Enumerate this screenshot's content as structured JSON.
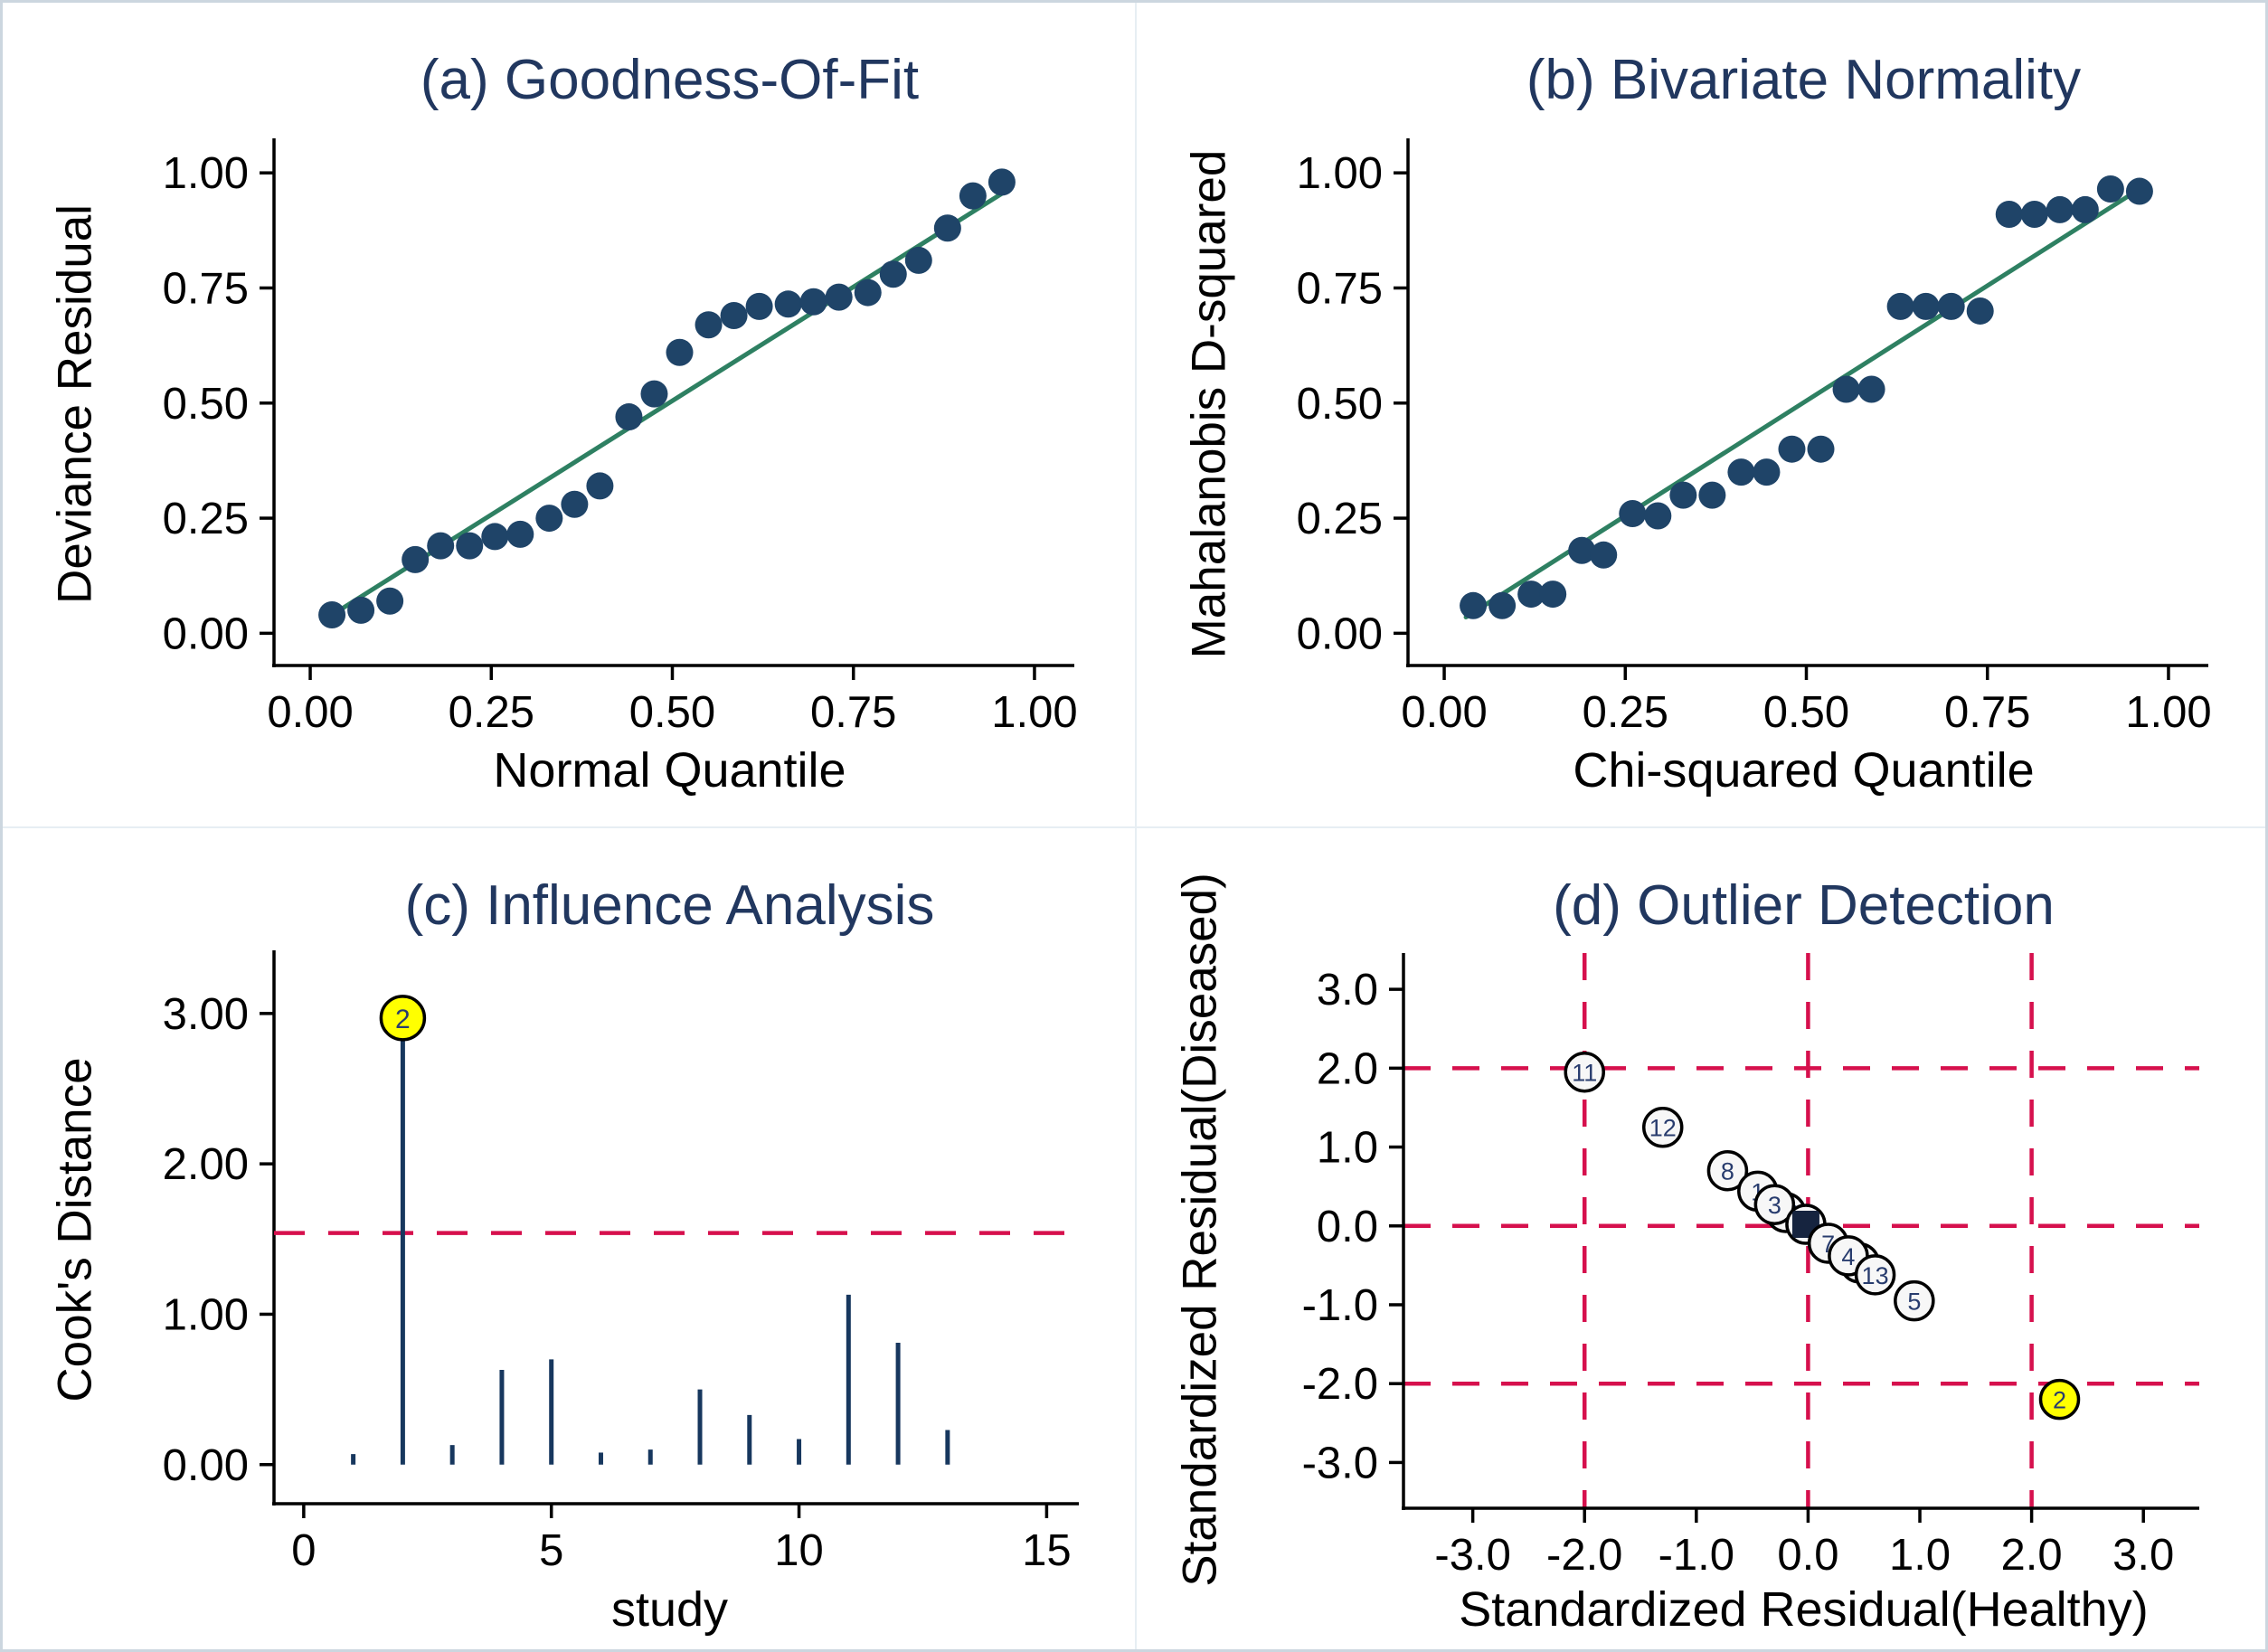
{
  "figure": {
    "colors": {
      "title_navy": "#21375f",
      "point_navy": "#1f4468",
      "spike_navy": "#17375e",
      "fit_green": "#2e8062",
      "ref_red": "#d6104d",
      "highlight_yellow": "#ffff00",
      "axis_black": "#000000",
      "label_navy": "#283c6e",
      "dark_marker": "#16243f",
      "circle_fill": "#f7f7f7",
      "border_gray": "#ccd6df",
      "divider_gray": "#e7eef3"
    }
  },
  "chart_data": [
    {
      "id": "a",
      "type": "scatter",
      "title": "(a) Goodness-Of-Fit",
      "xlabel": "Normal Quantile",
      "ylabel": "Deviance Residual",
      "xlim": [
        -0.05,
        1.055
      ],
      "ylim": [
        -0.07,
        1.075
      ],
      "xticks": [
        0,
        0.25,
        0.5,
        0.75,
        1
      ],
      "yticks": [
        0,
        0.25,
        0.5,
        0.75,
        1
      ],
      "xtick_labels": [
        "0.00",
        "0.25",
        "0.50",
        "0.75",
        "1.00"
      ],
      "ytick_labels": [
        "0.00",
        "0.25",
        "0.50",
        "0.75",
        "1.00"
      ],
      "grid": false,
      "points": {
        "x": [
          0.03,
          0.07,
          0.11,
          0.145,
          0.18,
          0.22,
          0.255,
          0.29,
          0.33,
          0.365,
          0.4,
          0.44,
          0.475,
          0.51,
          0.55,
          0.585,
          0.62,
          0.66,
          0.695,
          0.73,
          0.77,
          0.805,
          0.84,
          0.88,
          0.915,
          0.955
        ],
        "y": [
          0.04,
          0.05,
          0.07,
          0.16,
          0.19,
          0.19,
          0.21,
          0.215,
          0.25,
          0.28,
          0.32,
          0.47,
          0.52,
          0.61,
          0.67,
          0.69,
          0.71,
          0.715,
          0.72,
          0.73,
          0.74,
          0.78,
          0.81,
          0.88,
          0.95,
          0.98
        ]
      },
      "fit_line": {
        "x1": 0.02,
        "y1": 0.03,
        "x2": 0.965,
        "y2": 0.965
      }
    },
    {
      "id": "b",
      "type": "scatter",
      "title": "(b) Bivariate Normality",
      "xlabel": "Chi-squared Quantile",
      "ylabel": "Mahalanobis D-squared",
      "xlim": [
        -0.05,
        1.055
      ],
      "ylim": [
        -0.07,
        1.075
      ],
      "xticks": [
        0,
        0.25,
        0.5,
        0.75,
        1
      ],
      "yticks": [
        0,
        0.25,
        0.5,
        0.75,
        1
      ],
      "xtick_labels": [
        "0.00",
        "0.25",
        "0.50",
        "0.75",
        "1.00"
      ],
      "ytick_labels": [
        "0.00",
        "0.25",
        "0.50",
        "0.75",
        "1.00"
      ],
      "grid": false,
      "points": {
        "x": [
          0.04,
          0.08,
          0.12,
          0.15,
          0.19,
          0.22,
          0.26,
          0.295,
          0.33,
          0.37,
          0.41,
          0.445,
          0.48,
          0.52,
          0.555,
          0.59,
          0.63,
          0.665,
          0.7,
          0.74,
          0.78,
          0.815,
          0.85,
          0.885,
          0.92,
          0.96
        ],
        "y": [
          0.06,
          0.06,
          0.085,
          0.085,
          0.18,
          0.17,
          0.26,
          0.255,
          0.3,
          0.3,
          0.35,
          0.35,
          0.4,
          0.4,
          0.53,
          0.53,
          0.71,
          0.71,
          0.71,
          0.7,
          0.91,
          0.91,
          0.92,
          0.92,
          0.965,
          0.96
        ]
      },
      "fit_line": {
        "x1": 0.03,
        "y1": 0.035,
        "x2": 0.955,
        "y2": 0.96
      }
    },
    {
      "id": "c",
      "type": "spike",
      "title": "(c) Influence Analysis",
      "xlabel": "study",
      "ylabel": "Cook's Distance",
      "xlim": [
        -0.6,
        15.65
      ],
      "ylim": [
        -0.26,
        3.42
      ],
      "xticks": [
        0,
        5,
        10,
        15
      ],
      "yticks": [
        0,
        1,
        2,
        3
      ],
      "xtick_labels": [
        "0",
        "5",
        "10",
        "15"
      ],
      "ytick_labels": [
        "0.00",
        "1.00",
        "2.00",
        "3.00"
      ],
      "grid": false,
      "studies": [
        1,
        2,
        3,
        4,
        5,
        6,
        7,
        8,
        9,
        10,
        11,
        12,
        13
      ],
      "values": [
        0.07,
        2.95,
        0.13,
        0.63,
        0.7,
        0.08,
        0.1,
        0.5,
        0.33,
        0.17,
        1.13,
        0.81,
        0.23
      ],
      "threshold": 1.54,
      "highlight": {
        "study": 2,
        "marker_value": 2.97,
        "label": "2"
      }
    },
    {
      "id": "d",
      "type": "labeled_scatter",
      "title": "(d) Outlier Detection",
      "xlabel": "Standardized Residual(Healthy)",
      "ylabel": "Standardized Residual(Diseased)",
      "xlim": [
        -3.62,
        3.5
      ],
      "ylim": [
        -3.58,
        3.46
      ],
      "xticks": [
        -3,
        -2,
        -1,
        0,
        1,
        2,
        3
      ],
      "yticks": [
        -3,
        -2,
        -1,
        0,
        1,
        2,
        3
      ],
      "xtick_labels": [
        "-3.0",
        "-2.0",
        "-1.0",
        "0.0",
        "1.0",
        "2.0",
        "3.0"
      ],
      "ytick_labels": [
        "-3.0",
        "-2.0",
        "-1.0",
        "0.0",
        "1.0",
        "2.0",
        "3.0"
      ],
      "ref_x": [
        -2,
        0,
        2
      ],
      "ref_y": [
        -2,
        0,
        2
      ],
      "grid": false,
      "points": [
        {
          "label": "11",
          "x": -2.0,
          "y": 1.95
        },
        {
          "label": "12",
          "x": -1.3,
          "y": 1.25
        },
        {
          "label": "8",
          "x": -0.72,
          "y": 0.7
        },
        {
          "label": "1",
          "x": -0.45,
          "y": 0.44
        },
        {
          "label": "10",
          "x": -0.2,
          "y": 0.17
        },
        {
          "label": "3",
          "x": -0.3,
          "y": 0.27
        },
        {
          "label": "6",
          "x": -0.02,
          "y": 0.02,
          "style": "dark"
        },
        {
          "label": "7",
          "x": 0.18,
          "y": -0.22
        },
        {
          "label": "9",
          "x": 0.46,
          "y": -0.47
        },
        {
          "label": "4",
          "x": 0.36,
          "y": -0.38
        },
        {
          "label": "13",
          "x": 0.6,
          "y": -0.62
        },
        {
          "label": "5",
          "x": 0.95,
          "y": -0.95
        },
        {
          "label": "2",
          "x": 2.25,
          "y": -2.2,
          "style": "highlight"
        }
      ]
    }
  ]
}
